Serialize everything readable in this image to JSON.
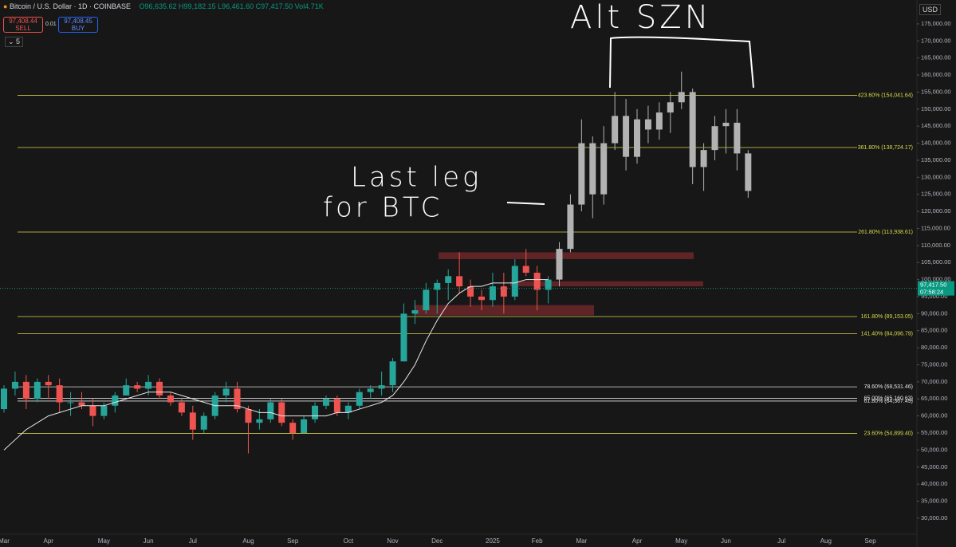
{
  "header": {
    "symbol": "Bitcoin / U.S. Dollar · 1D · COINBASE",
    "ohlc": "O96,635.62 H99,182.15 L96,461.60 C97,417.50 Vol4.71K",
    "sell_price": "97,408.44",
    "sell": "SELL",
    "spread": "0.01",
    "buy_price": "97,408.45",
    "buy": "BUY",
    "interval_count": "5",
    "currency": "USD"
  },
  "chart_data": {
    "type": "candlestick",
    "categories": [
      "Mar",
      null,
      null,
      null,
      "Apr",
      null,
      null,
      null,
      null,
      "May",
      null,
      null,
      null,
      "Jun",
      null,
      null,
      null,
      "Jul",
      null,
      null,
      null,
      null,
      "Aug",
      null,
      null,
      null,
      "Sep",
      null,
      null,
      null,
      null,
      "Oct",
      null,
      null,
      null,
      "Nov",
      null,
      null,
      null,
      "Dec",
      null,
      null,
      null,
      null,
      "2025",
      null,
      null,
      null,
      "Feb",
      null,
      null,
      null,
      "Mar",
      null,
      null,
      null,
      null,
      "Apr",
      null,
      null,
      null,
      "May",
      null,
      null,
      null,
      "Jun",
      null,
      null,
      null,
      null,
      "Jul",
      null,
      null,
      null,
      "Aug",
      null,
      null,
      null,
      "Sep"
    ],
    "candles": {
      "up_color": "#26a69a",
      "down_color": "#ef5350",
      "open": [
        62000,
        68000,
        70000,
        65000,
        70000,
        69000,
        64000,
        64000,
        63000,
        60000,
        63000,
        66000,
        69000,
        68000,
        70000,
        66000,
        64000,
        61000,
        56000,
        60000,
        66000,
        68000,
        62000,
        58000,
        59000,
        64000,
        58000,
        55000,
        59000,
        63000,
        65000,
        61000,
        63000,
        67000,
        68000,
        69000,
        76000,
        90000,
        91000,
        97000,
        99000,
        101000,
        98000,
        95000,
        94000,
        98000,
        95000,
        104000,
        102000,
        97000,
        null,
        null,
        null,
        null,
        null,
        null,
        null,
        null,
        null,
        null,
        null,
        null,
        null,
        null,
        null,
        null,
        null,
        null,
        null,
        null,
        null,
        null,
        null,
        null,
        null,
        null,
        null,
        null,
        null
      ],
      "high": [
        69000,
        73000,
        72000,
        71000,
        72000,
        71000,
        67000,
        67000,
        65000,
        64000,
        67000,
        71000,
        70000,
        72000,
        71000,
        67000,
        65000,
        63000,
        61000,
        67000,
        70000,
        70000,
        63000,
        62000,
        65000,
        65000,
        59000,
        60000,
        64000,
        66000,
        66000,
        64000,
        68000,
        69000,
        73000,
        77000,
        93000,
        94000,
        99000,
        100000,
        103000,
        108000,
        100000,
        97000,
        102000,
        102000,
        106000,
        109000,
        104000,
        101000,
        null,
        null,
        null,
        null,
        null,
        null,
        null,
        null,
        null,
        null,
        null,
        null,
        null,
        null,
        null,
        null,
        null,
        null,
        null,
        null,
        null,
        null,
        null,
        null,
        null,
        null,
        null,
        null,
        null
      ],
      "low": [
        61000,
        66000,
        62000,
        64000,
        65000,
        61000,
        60000,
        62000,
        57000,
        59000,
        61000,
        66000,
        67000,
        66000,
        65000,
        63000,
        60000,
        53000,
        55000,
        59000,
        64000,
        61000,
        49000,
        56000,
        58000,
        57000,
        53000,
        55000,
        58000,
        62000,
        60000,
        59000,
        62000,
        65000,
        66000,
        67000,
        76000,
        87000,
        90000,
        90000,
        94000,
        96000,
        92000,
        91000,
        92000,
        90000,
        94000,
        101000,
        91000,
        93000,
        null,
        null,
        null,
        null,
        null,
        null,
        null,
        null,
        null,
        null,
        null,
        null,
        null,
        null,
        null,
        null,
        null,
        null,
        null,
        null,
        null,
        null,
        null,
        null,
        null,
        null,
        null,
        null,
        null
      ],
      "close": [
        68000,
        70000,
        65000,
        70000,
        69000,
        64000,
        64000,
        63000,
        60000,
        63000,
        66000,
        69000,
        68000,
        70000,
        66000,
        64000,
        61000,
        56000,
        60000,
        66000,
        68000,
        62000,
        58000,
        59000,
        64000,
        58000,
        55000,
        59000,
        63000,
        65000,
        61000,
        63000,
        67000,
        68000,
        69000,
        76000,
        90000,
        91000,
        97000,
        99000,
        101000,
        98000,
        95000,
        94000,
        98000,
        95000,
        104000,
        102000,
        97000,
        100000,
        null,
        null,
        null,
        null,
        null,
        null,
        null,
        null,
        null,
        null,
        null,
        null,
        null,
        null,
        null,
        null,
        null,
        null,
        null,
        null,
        null,
        null,
        null,
        null,
        null,
        null,
        null,
        null,
        null
      ]
    },
    "projection": {
      "color": "#b2b2b2",
      "open": [
        null,
        null,
        null,
        null,
        null,
        null,
        null,
        null,
        null,
        null,
        null,
        null,
        null,
        null,
        null,
        null,
        null,
        null,
        null,
        null,
        null,
        null,
        null,
        null,
        null,
        null,
        null,
        null,
        null,
        null,
        null,
        null,
        null,
        null,
        null,
        null,
        null,
        null,
        null,
        null,
        null,
        null,
        null,
        null,
        null,
        null,
        null,
        null,
        null,
        null,
        100000,
        109000,
        122000,
        140000,
        125000,
        140000,
        148000,
        136000,
        147000,
        144000,
        149000,
        152000,
        155000,
        133000,
        138000,
        145000,
        146000,
        137000,
        null,
        null,
        null,
        null,
        null,
        null,
        null,
        null,
        null,
        null,
        null
      ],
      "high": [
        null,
        null,
        null,
        null,
        null,
        null,
        null,
        null,
        null,
        null,
        null,
        null,
        null,
        null,
        null,
        null,
        null,
        null,
        null,
        null,
        null,
        null,
        null,
        null,
        null,
        null,
        null,
        null,
        null,
        null,
        null,
        null,
        null,
        null,
        null,
        null,
        null,
        null,
        null,
        null,
        null,
        null,
        null,
        null,
        null,
        null,
        null,
        null,
        null,
        null,
        111000,
        125000,
        147000,
        142000,
        145000,
        155000,
        153000,
        150000,
        151000,
        152000,
        155000,
        161000,
        156000,
        140000,
        148000,
        150000,
        150000,
        138000,
        null,
        null,
        null,
        null,
        null,
        null,
        null,
        null,
        null,
        null,
        null
      ],
      "low": [
        null,
        null,
        null,
        null,
        null,
        null,
        null,
        null,
        null,
        null,
        null,
        null,
        null,
        null,
        null,
        null,
        null,
        null,
        null,
        null,
        null,
        null,
        null,
        null,
        null,
        null,
        null,
        null,
        null,
        null,
        null,
        null,
        null,
        null,
        null,
        null,
        null,
        null,
        null,
        null,
        null,
        null,
        null,
        null,
        null,
        null,
        null,
        null,
        null,
        null,
        98000,
        108000,
        120000,
        118000,
        122000,
        138000,
        132000,
        134000,
        140000,
        141000,
        143000,
        150000,
        128000,
        126000,
        135000,
        137000,
        132000,
        124000,
        null,
        null,
        null,
        null,
        null,
        null,
        null,
        null,
        null,
        null,
        null
      ],
      "close": [
        null,
        null,
        null,
        null,
        null,
        null,
        null,
        null,
        null,
        null,
        null,
        null,
        null,
        null,
        null,
        null,
        null,
        null,
        null,
        null,
        null,
        null,
        null,
        null,
        null,
        null,
        null,
        null,
        null,
        null,
        null,
        null,
        null,
        null,
        null,
        null,
        null,
        null,
        null,
        null,
        null,
        null,
        null,
        null,
        null,
        null,
        null,
        null,
        null,
        null,
        109000,
        122000,
        140000,
        125000,
        140000,
        148000,
        136000,
        147000,
        144000,
        149000,
        152000,
        155000,
        133000,
        138000,
        145000,
        146000,
        137000,
        126000,
        null,
        null,
        null,
        null,
        null,
        null,
        null,
        null,
        null,
        null,
        null
      ]
    },
    "moving_average": {
      "color": "#e6e6e6",
      "values": [
        50000,
        53000,
        56000,
        58000,
        60000,
        61000,
        62000,
        63000,
        63000,
        63000,
        64000,
        65000,
        66000,
        67000,
        67000,
        67000,
        66000,
        65000,
        64000,
        63000,
        63000,
        63000,
        62000,
        61000,
        61000,
        60000,
        60000,
        60000,
        60000,
        60000,
        61000,
        61000,
        62000,
        63000,
        64000,
        66000,
        70000,
        75000,
        82000,
        88000,
        93000,
        96000,
        98000,
        98000,
        99000,
        99000,
        99000,
        100000,
        100000,
        100000,
        null,
        null,
        null,
        null,
        null,
        null,
        null,
        null,
        null,
        null,
        null,
        null,
        null,
        null,
        null,
        null,
        null,
        null,
        null,
        null,
        null,
        null,
        null,
        null,
        null,
        null,
        null,
        null,
        null
      ]
    },
    "fib_levels": [
      {
        "label": "423.60% (154,041.64)",
        "value": 154041.64,
        "color": "#d8d84a"
      },
      {
        "label": "361.80% (138,724.17)",
        "value": 138724.17,
        "color": "#d8d84a"
      },
      {
        "label": "261.80% (113,938.61)",
        "value": 113938.61,
        "color": "#d8d84a"
      },
      {
        "label": "161.80% (89,153.05)",
        "value": 89153.05,
        "color": "#d8d84a"
      },
      {
        "label": "141.40% (84,096.79)",
        "value": 84096.79,
        "color": "#d8d84a"
      },
      {
        "label": "78.60% (68,531.46)",
        "value": 68531.46,
        "color": "#e0e0e0"
      },
      {
        "label": "65.00% (65,160.63)",
        "value": 65160.63,
        "color": "#e0e0e0"
      },
      {
        "label": "61.80% (64,367.49)",
        "value": 64367.49,
        "color": "#e0e0e0"
      },
      {
        "label": "23.60% (54,899.40)",
        "value": 54899.4,
        "color": "#d8d84a"
      }
    ],
    "zones": [
      {
        "low": 106000,
        "high": 108000
      },
      {
        "low": 98000,
        "high": 99500
      },
      {
        "low": 89500,
        "high": 92500
      }
    ],
    "zone_color": "#7a2a2e",
    "last_price": {
      "value": 97417.5,
      "label": "97,417.50",
      "countdown": "07:58:24",
      "color": "#089981"
    },
    "annotations": [
      "Alt SZN",
      "Last leg",
      "for BTC"
    ],
    "ylim": [
      25300,
      182000
    ],
    "yticks": [
      {
        "value": 30000,
        "label": "30,000.00"
      },
      {
        "value": 35000,
        "label": "35,000.00"
      },
      {
        "value": 40000,
        "label": "40,000.00"
      },
      {
        "value": 45000,
        "label": "45,000.00"
      },
      {
        "value": 50000,
        "label": "50,000.00"
      },
      {
        "value": 55000,
        "label": "55,000.00"
      },
      {
        "value": 60000,
        "label": "60,000.00"
      },
      {
        "value": 65000,
        "label": "65,000.00"
      },
      {
        "value": 70000,
        "label": "70,000.00"
      },
      {
        "value": 75000,
        "label": "75,000.00"
      },
      {
        "value": 80000,
        "label": "80,000.00"
      },
      {
        "value": 85000,
        "label": "85,000.00"
      },
      {
        "value": 90000,
        "label": "90,000.00"
      },
      {
        "value": 95000,
        "label": "95,000.00"
      },
      {
        "value": 100000,
        "label": "100,000.00"
      },
      {
        "value": 105000,
        "label": "105,000.00"
      },
      {
        "value": 110000,
        "label": "110,000.00"
      },
      {
        "value": 115000,
        "label": "115,000.00"
      },
      {
        "value": 120000,
        "label": "120,000.00"
      },
      {
        "value": 125000,
        "label": "125,000.00"
      },
      {
        "value": 130000,
        "label": "130,000.00"
      },
      {
        "value": 135000,
        "label": "135,000.00"
      },
      {
        "value": 140000,
        "label": "140,000.00"
      },
      {
        "value": 145000,
        "label": "145,000.00"
      },
      {
        "value": 150000,
        "label": "150,000.00"
      },
      {
        "value": 155000,
        "label": "155,000.00"
      },
      {
        "value": 160000,
        "label": "160,000.00"
      },
      {
        "value": 165000,
        "label": "165,000.00"
      },
      {
        "value": 170000,
        "label": "170,000.00"
      },
      {
        "value": 175000,
        "label": "175,000.00"
      }
    ]
  }
}
